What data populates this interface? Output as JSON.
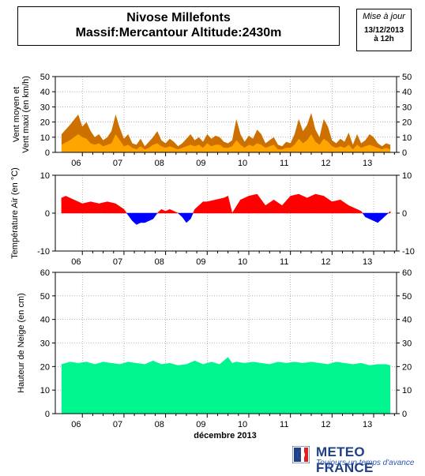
{
  "header": {
    "title_line1": "Nivose Millefonts",
    "title_line2": "Massif:Mercantour Altitude:2430m",
    "update_label": "Mise à jour",
    "update_date": "13/12/2013",
    "update_time": "à 12h"
  },
  "footer": {
    "brand": "METEO FRANCE",
    "tagline": "Toujours un temps d'avance",
    "xaxis_label": "décembre 2013"
  },
  "colors": {
    "wind_max": "#cc7000",
    "wind_mean": "#ffa500",
    "temp_positive": "#ff0000",
    "temp_negative": "#0000ff",
    "snow": "#00f58f",
    "brand_blue": "#1f3f86"
  },
  "chart_data": [
    {
      "type": "area",
      "panel": "wind",
      "ylabel": "Vent moyen et\nVent maxi (en km/h)",
      "ylim": [
        0,
        50
      ],
      "yticks": [
        0,
        10,
        20,
        30,
        40,
        50
      ],
      "x_tick_labels": [
        "06",
        "07",
        "08",
        "09",
        "10",
        "11",
        "12",
        "13"
      ],
      "grid": true,
      "x_days": [
        5.5,
        5.7,
        5.9,
        6.0,
        6.1,
        6.2,
        6.3,
        6.4,
        6.5,
        6.6,
        6.7,
        6.8,
        6.9,
        7.0,
        7.1,
        7.2,
        7.3,
        7.4,
        7.5,
        7.6,
        7.7,
        7.8,
        7.9,
        8.0,
        8.1,
        8.2,
        8.3,
        8.4,
        8.5,
        8.6,
        8.7,
        8.8,
        8.9,
        9.0,
        9.1,
        9.2,
        9.3,
        9.4,
        9.5,
        9.6,
        9.7,
        9.8,
        9.9,
        10.0,
        10.1,
        10.2,
        10.3,
        10.4,
        10.5,
        10.6,
        10.7,
        10.8,
        10.9,
        11.0,
        11.1,
        11.2,
        11.3,
        11.4,
        11.5,
        11.6,
        11.7,
        11.8,
        11.9,
        12.0,
        12.1,
        12.2,
        12.3,
        12.4,
        12.5,
        12.6,
        12.7,
        12.8,
        12.9,
        13.0,
        13.1,
        13.2,
        13.3,
        13.4
      ],
      "series": [
        {
          "name": "Vent maxi",
          "values": [
            12,
            18,
            25,
            17,
            20,
            14,
            10,
            12,
            8,
            10,
            14,
            25,
            16,
            9,
            12,
            6,
            5,
            9,
            4,
            7,
            10,
            14,
            8,
            6,
            9,
            7,
            4,
            6,
            9,
            12,
            8,
            10,
            7,
            12,
            9,
            11,
            10,
            7,
            6,
            8,
            22,
            12,
            7,
            11,
            9,
            15,
            12,
            6,
            8,
            10,
            5,
            4,
            7,
            6,
            12,
            22,
            14,
            18,
            26,
            15,
            10,
            22,
            17,
            8,
            6,
            9,
            7,
            13,
            5,
            12,
            6,
            8,
            12,
            10,
            6,
            4,
            6,
            5
          ]
        },
        {
          "name": "Vent moyen",
          "values": [
            5,
            8,
            12,
            10,
            9,
            6,
            5,
            6,
            4,
            5,
            6,
            12,
            8,
            4,
            5,
            3,
            2,
            4,
            2,
            3,
            5,
            6,
            4,
            3,
            4,
            3,
            2,
            3,
            4,
            5,
            4,
            5,
            3,
            6,
            4,
            5,
            5,
            3,
            3,
            4,
            8,
            5,
            3,
            5,
            4,
            6,
            5,
            3,
            4,
            5,
            2,
            2,
            3,
            3,
            5,
            9,
            6,
            8,
            12,
            7,
            5,
            9,
            7,
            4,
            3,
            4,
            3,
            5,
            2,
            5,
            3,
            4,
            5,
            4,
            3,
            2,
            3,
            2
          ]
        }
      ]
    },
    {
      "type": "area",
      "panel": "temperature",
      "ylabel": "Température Air (en °C)",
      "ylim": [
        -10,
        10
      ],
      "yticks": [
        -10,
        0,
        10
      ],
      "x_tick_labels": [
        "06",
        "07",
        "08",
        "09",
        "10",
        "11",
        "12",
        "13"
      ],
      "grid": true,
      "x_days": [
        5.5,
        5.6,
        5.8,
        6.0,
        6.2,
        6.4,
        6.6,
        6.8,
        7.0,
        7.1,
        7.2,
        7.3,
        7.4,
        7.5,
        7.6,
        7.7,
        7.8,
        7.9,
        8.0,
        8.1,
        8.2,
        8.3,
        8.4,
        8.5,
        8.6,
        8.7,
        8.8,
        8.9,
        9.0,
        9.2,
        9.4,
        9.5,
        9.6,
        9.8,
        10.0,
        10.2,
        10.4,
        10.6,
        10.8,
        11.0,
        11.2,
        11.4,
        11.6,
        11.8,
        12.0,
        12.2,
        12.4,
        12.6,
        12.7,
        12.8,
        12.9,
        13.0,
        13.1,
        13.2,
        13.3,
        13.4
      ],
      "series": [
        {
          "name": "Température",
          "values": [
            4,
            4.5,
            3.5,
            2.5,
            3,
            2.5,
            3,
            2.5,
            1,
            -0.5,
            -2,
            -3,
            -2.5,
            -2.5,
            -2,
            -1.5,
            0,
            1,
            0.5,
            1,
            0.5,
            0,
            -1,
            -2.5,
            -1.5,
            1,
            2,
            3,
            3,
            3.5,
            4,
            4.5,
            0,
            3.5,
            4.5,
            5,
            2,
            3.5,
            2,
            4.5,
            5,
            4,
            5,
            4.5,
            3,
            3.5,
            2,
            1,
            0.5,
            -1,
            -1.5,
            -2,
            -2.5,
            -1.5,
            -0.5,
            0.5
          ]
        }
      ]
    },
    {
      "type": "area",
      "panel": "snow",
      "ylabel": "Hauteur de Neige (en cm)",
      "xlabel": "décembre 2013",
      "ylim": [
        0,
        60
      ],
      "yticks": [
        0,
        10,
        20,
        30,
        40,
        50,
        60
      ],
      "x_tick_labels": [
        "06",
        "07",
        "08",
        "09",
        "10",
        "11",
        "12",
        "13"
      ],
      "grid": true,
      "x_days": [
        5.5,
        5.7,
        5.9,
        6.1,
        6.3,
        6.5,
        6.7,
        6.9,
        7.1,
        7.3,
        7.5,
        7.7,
        7.9,
        8.1,
        8.3,
        8.5,
        8.7,
        8.9,
        9.1,
        9.3,
        9.5,
        9.6,
        9.7,
        9.9,
        10.1,
        10.3,
        10.5,
        10.7,
        10.9,
        11.1,
        11.3,
        11.5,
        11.7,
        11.9,
        12.1,
        12.3,
        12.5,
        12.7,
        12.9,
        13.1,
        13.3,
        13.4
      ],
      "series": [
        {
          "name": "Hauteur de neige",
          "values": [
            21,
            22,
            21.5,
            22,
            21,
            22,
            21.5,
            21,
            22,
            21.5,
            21,
            22.5,
            21,
            21.5,
            20.5,
            21,
            22.5,
            21,
            22,
            21,
            24,
            21.5,
            22,
            21.5,
            22,
            21.5,
            21,
            22,
            21.5,
            22,
            21.5,
            22,
            21.5,
            21,
            22,
            21.5,
            21,
            21.5,
            20.5,
            21,
            21,
            20.5
          ]
        }
      ]
    }
  ]
}
